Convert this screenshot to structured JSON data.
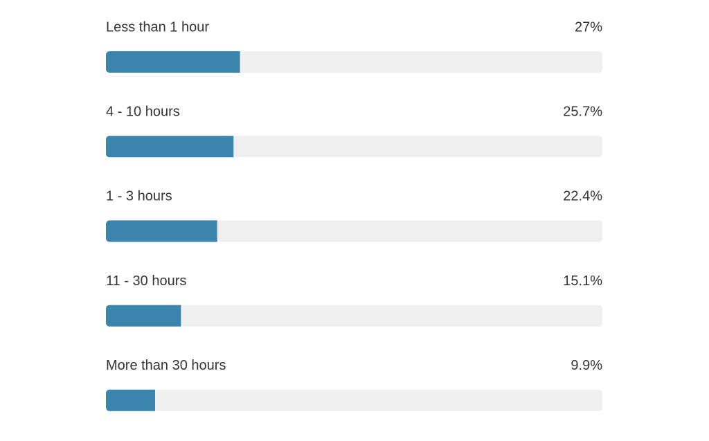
{
  "chart_data": {
    "type": "bar",
    "categories": [
      "Less than 1 hour",
      "4 - 10 hours",
      "1 - 3 hours",
      "11 - 30 hours",
      "More than 30 hours"
    ],
    "values": [
      27,
      25.7,
      22.4,
      15.1,
      9.9
    ],
    "value_labels": [
      "27%",
      "25.7%",
      "22.4%",
      "15.1%",
      "9.9%"
    ],
    "xlim": [
      0,
      100
    ],
    "color": "#3a84ad",
    "track_color": "#efefef"
  }
}
